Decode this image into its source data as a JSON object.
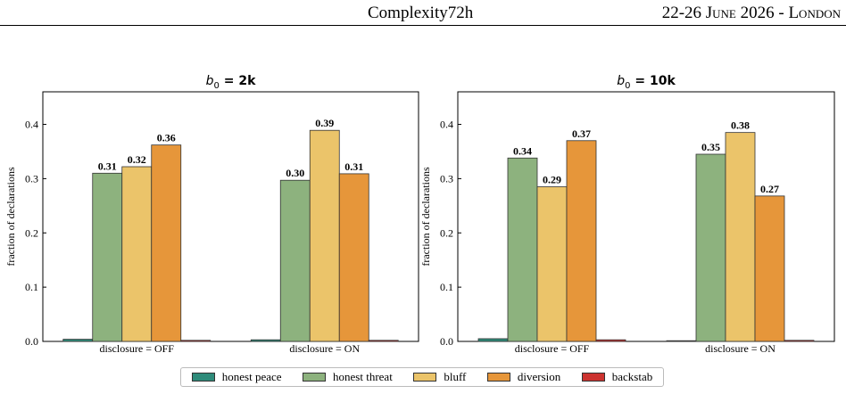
{
  "header": {
    "venue": "Complexity72h",
    "dates": "22-26 June 2026 - London"
  },
  "legend": [
    {
      "name": "honest peace",
      "color": "#2e8b7a"
    },
    {
      "name": "honest threat",
      "color": "#8db27e"
    },
    {
      "name": "bluff",
      "color": "#ebc46a"
    },
    {
      "name": "diversion",
      "color": "#e6963a"
    },
    {
      "name": "backstab",
      "color": "#cc3330"
    }
  ],
  "chart_data": [
    {
      "type": "bar",
      "title_prefix": "b",
      "title_sub": "0",
      "title_suffix": " = 2k",
      "ylabel": "fraction of declarations",
      "ylim": [
        0,
        0.46
      ],
      "yticks": [
        "0.0",
        "0.1",
        "0.2",
        "0.3",
        "0.4"
      ],
      "categories": [
        "disclosure = OFF",
        "disclosure = ON"
      ],
      "series": [
        {
          "name": "honest peace",
          "values": [
            0.004,
            0.003
          ]
        },
        {
          "name": "honest threat",
          "values": [
            0.31,
            0.297
          ]
        },
        {
          "name": "bluff",
          "values": [
            0.322,
            0.389
          ]
        },
        {
          "name": "diversion",
          "values": [
            0.362,
            0.309
          ]
        },
        {
          "name": "backstab",
          "values": [
            0.002,
            0.002
          ]
        }
      ],
      "labels": [
        [
          null,
          "0.31",
          "0.32",
          "0.36",
          null
        ],
        [
          null,
          "0.30",
          "0.39",
          "0.31",
          null
        ]
      ]
    },
    {
      "type": "bar",
      "title_prefix": "b",
      "title_sub": "0",
      "title_suffix": " = 10k",
      "ylabel": "fraction of declarations",
      "ylim": [
        0,
        0.46
      ],
      "yticks": [
        "0.0",
        "0.1",
        "0.2",
        "0.3",
        "0.4"
      ],
      "categories": [
        "disclosure = OFF",
        "disclosure = ON"
      ],
      "series": [
        {
          "name": "honest peace",
          "values": [
            0.005,
            0.0
          ]
        },
        {
          "name": "honest threat",
          "values": [
            0.338,
            0.345
          ]
        },
        {
          "name": "bluff",
          "values": [
            0.285,
            0.385
          ]
        },
        {
          "name": "diversion",
          "values": [
            0.37,
            0.268
          ]
        },
        {
          "name": "backstab",
          "values": [
            0.003,
            0.002
          ]
        }
      ],
      "labels": [
        [
          null,
          "0.34",
          "0.29",
          "0.37",
          null
        ],
        [
          null,
          "0.35",
          "0.38",
          "0.27",
          null
        ]
      ]
    }
  ]
}
